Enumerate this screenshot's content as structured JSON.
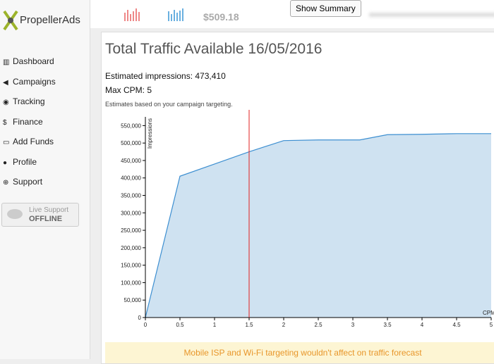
{
  "header": {
    "balance": "$509.18",
    "summary_button": "Show Summary"
  },
  "sidebar": {
    "logo": "PropellerAds",
    "menu": [
      "Dashboard",
      "Campaigns",
      "Tracking",
      "Finance",
      "Add Funds",
      "Profile",
      "Support"
    ],
    "support_label": "Live Support",
    "support_status": "OFFLINE"
  },
  "main": {
    "title": "Total Traffic Available 16/05/2016",
    "estimated_impressions": "Estimated impressions: 473,410",
    "max_cpm": "Max CPM: 5",
    "note": "Estimates based on your campaign targeting.",
    "notice": "Mobile ISP and Wi-Fi targeting wouldn't affect on traffic forecast"
  },
  "chart_data": {
    "type": "area",
    "y_label": "Impressions",
    "x_label": "CPM",
    "x": [
      0,
      0.5,
      1,
      1.5,
      2,
      2.5,
      3.1,
      3.5,
      4,
      4.5,
      5
    ],
    "values": [
      0,
      405000,
      440000,
      475000,
      507000,
      509000,
      509000,
      524000,
      525000,
      527000,
      527000
    ],
    "color": "#3d8fd1",
    "fill": "#cfe2f1",
    "reference_x": 1.5,
    "reference_color": "#e02020",
    "xlim": [
      0,
      5
    ],
    "ylim": [
      0,
      575000
    ],
    "xticks": [
      0,
      0.5,
      1,
      1.5,
      2,
      2.5,
      3,
      3.5,
      4,
      4.5,
      5
    ],
    "yticks": [
      0,
      {
        "value": 50000,
        "label": "50,000"
      },
      {
        "value": 100000,
        "label": "100,000"
      },
      {
        "value": 150000,
        "label": "150,000"
      },
      {
        "value": 200000,
        "label": "200,000"
      },
      {
        "value": 250000,
        "label": "250,000"
      },
      {
        "value": 300000,
        "label": "300,000"
      },
      {
        "value": 350000,
        "label": "350,000"
      },
      {
        "value": 400000,
        "label": "400,000"
      },
      {
        "value": 450000,
        "label": "450,000"
      },
      {
        "value": 500000,
        "label": "500,000"
      },
      {
        "value": 550000,
        "label": "550,000"
      }
    ]
  }
}
